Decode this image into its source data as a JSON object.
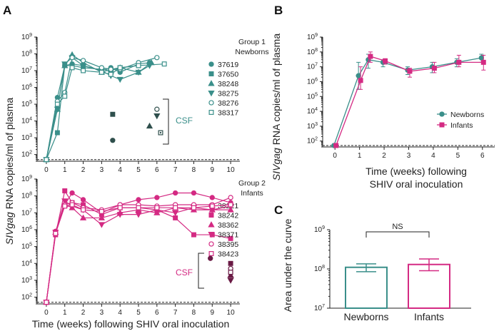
{
  "colors": {
    "newborns": "#3a8f8a",
    "infants": "#d42a83",
    "axis": "#222222"
  },
  "panels": {
    "a": {
      "label": "A",
      "ylabel_gene": "SIVgag",
      "ylabel_rest": " RNA copies/ml of plasma",
      "xlabel": "Time (weeks) following SHIV oral inoculation",
      "csf_label": "CSF",
      "csf_label_2": "CSF"
    },
    "b": {
      "label": "B",
      "ylabel_gene": "SIVgag",
      "ylabel_rest": " RNA copies/ml of plasma",
      "xlabel_line1": "Time (weeks) following",
      "xlabel_line2": "SHIV oral inoculation"
    },
    "c": {
      "label": "C",
      "ylabel": "Area under the curve",
      "ns": "NS"
    }
  },
  "chart_data": [
    {
      "id": "A-top",
      "type": "line",
      "legend_title_1": "Group 1",
      "legend_title_2": "Newborns",
      "xticks": [
        "0",
        "1",
        "2",
        "3",
        "4",
        "5",
        "6",
        "7",
        "8",
        "9",
        "10"
      ],
      "ylog": true,
      "ylim": [
        40,
        1000000000
      ],
      "ytick_exps": [
        2,
        3,
        4,
        5,
        6,
        7,
        8,
        9
      ],
      "detection_limit": 50,
      "series": [
        {
          "name": "37619",
          "marker": "circle",
          "fill": true,
          "x": [
            0,
            0.6,
            1,
            1.4,
            2,
            3,
            3.5,
            4,
            5,
            5.6
          ],
          "y": [
            50,
            250000,
            20000000,
            25000000,
            20000000,
            10000000,
            15000000,
            8000000,
            25000000,
            30000000
          ]
        },
        {
          "name": "37650",
          "marker": "square",
          "fill": true,
          "x": [
            0,
            0.6,
            1,
            1.4,
            2,
            3,
            3.5,
            4,
            5
          ],
          "y": [
            50,
            2000,
            20000000,
            20000000,
            15000000,
            12000000,
            10000000,
            15000000,
            20000000
          ]
        },
        {
          "name": "38248",
          "marker": "triangle",
          "fill": true,
          "x": [
            0,
            0.6,
            1,
            1.4,
            2,
            3,
            3.5,
            4,
            5,
            5.7
          ],
          "y": [
            50,
            50000,
            20000000,
            90000000,
            30000000,
            8000000,
            12000000,
            15000000,
            8000000,
            30000000
          ]
        },
        {
          "name": "38275",
          "marker": "tri-down",
          "fill": true,
          "x": [
            0,
            0.6,
            1,
            1.4,
            2,
            3,
            3.5,
            4,
            5,
            5.6
          ],
          "y": [
            50,
            50000,
            25000000,
            60000000,
            20000000,
            10000000,
            5000000,
            3000000,
            8000000,
            20000000
          ]
        },
        {
          "name": "38276",
          "marker": "circle",
          "fill": false,
          "x": [
            0,
            0.6,
            1,
            1.4,
            2,
            3,
            3.5,
            4,
            5,
            6
          ],
          "y": [
            50,
            150000,
            500000,
            60000000,
            40000000,
            15000000,
            12000000,
            12000000,
            30000000,
            60000000
          ]
        },
        {
          "name": "38317",
          "marker": "square",
          "fill": false,
          "x": [
            0,
            0.6,
            1,
            1.4,
            2,
            3,
            3.5,
            4,
            5,
            6.4
          ],
          "y": [
            50,
            100000,
            300000,
            15000000,
            10000000,
            8000000,
            6000000,
            15000000,
            20000000,
            25000000
          ]
        }
      ],
      "csf": [
        {
          "series": "37619",
          "marker": "circle",
          "fill": true,
          "x": 3.6,
          "y": 700
        },
        {
          "series": "37650",
          "marker": "square",
          "fill": true,
          "x": 3.6,
          "y": 25000
        },
        {
          "series": "38248",
          "marker": "triangle",
          "fill": true,
          "x": 5.6,
          "y": 5000
        },
        {
          "series": "38275",
          "marker": "tri-down",
          "fill": true,
          "x": 6,
          "y": 20000
        },
        {
          "series": "38276",
          "marker": "circle",
          "fill": false,
          "x": 6,
          "y": 50000
        },
        {
          "series": "38317",
          "marker": "square-dot",
          "fill": false,
          "x": 6.2,
          "y": 2000
        }
      ]
    },
    {
      "id": "A-bottom",
      "type": "line",
      "legend_title_1": "Group 2",
      "legend_title_2": "Infants",
      "xticks": [
        "0",
        "1",
        "2",
        "3",
        "4",
        "5",
        "6",
        "7",
        "8",
        "9",
        "10"
      ],
      "ylog": true,
      "ylim": [
        40,
        1000000000
      ],
      "ytick_exps": [
        2,
        3,
        4,
        5,
        6,
        7,
        8,
        9
      ],
      "detection_limit": 50,
      "series": [
        {
          "name": "38221",
          "marker": "circle",
          "fill": true,
          "x": [
            0,
            0.5,
            1,
            1.4,
            2,
            3,
            4,
            5,
            6,
            7,
            8,
            9,
            10
          ],
          "y": [
            50,
            800000,
            30000000,
            150000000,
            60000000,
            10000000,
            30000000,
            60000000,
            80000000,
            150000000,
            150000000,
            80000000,
            40000000
          ]
        },
        {
          "name": "38242",
          "marker": "square",
          "fill": true,
          "x": [
            0,
            0.5,
            1,
            1.4,
            2,
            3,
            4,
            5,
            6,
            7,
            8,
            9,
            10
          ],
          "y": [
            50,
            500000,
            200000000,
            40000000,
            30000000,
            8000000,
            20000000,
            20000000,
            15000000,
            5000000,
            500000,
            500000,
            300000
          ]
        },
        {
          "name": "38362",
          "marker": "triangle",
          "fill": true,
          "x": [
            0,
            0.5,
            1,
            1.4,
            2,
            3,
            4,
            5,
            6,
            7,
            8,
            9,
            10
          ],
          "y": [
            50,
            700000,
            30000000,
            20000000,
            5000000,
            5000000,
            10000000,
            15000000,
            10000000,
            20000000,
            15000000,
            15000000,
            15000000
          ]
        },
        {
          "name": "38371",
          "marker": "tri-down",
          "fill": true,
          "x": [
            0,
            0.5,
            1,
            1.4,
            2,
            3,
            4,
            5,
            6,
            7,
            8,
            9,
            10
          ],
          "y": [
            50,
            700000,
            50000000,
            25000000,
            15000000,
            2000000,
            8000000,
            8000000,
            15000000,
            10000000,
            20000000,
            15000000,
            25000000
          ]
        },
        {
          "name": "38395",
          "marker": "circle",
          "fill": false,
          "x": [
            0,
            0.5,
            1,
            1.4,
            2,
            3,
            4,
            5,
            6,
            7,
            8,
            9,
            10
          ],
          "y": [
            50,
            600000,
            30000000,
            40000000,
            20000000,
            15000000,
            30000000,
            30000000,
            25000000,
            30000000,
            30000000,
            30000000,
            80000000
          ]
        },
        {
          "name": "38423",
          "marker": "square",
          "fill": false,
          "x": [
            0,
            0.5,
            1,
            1.4,
            2,
            3,
            4,
            5,
            6,
            7,
            8,
            9,
            10
          ],
          "y": [
            50,
            600000,
            25000000,
            30000000,
            15000000,
            12000000,
            20000000,
            20000000,
            20000000,
            20000000,
            20000000,
            25000000,
            30000000
          ]
        }
      ],
      "csf": [
        {
          "series": "38221",
          "marker": "circle",
          "fill": true,
          "x": 8.9,
          "y": 20000
        },
        {
          "series": "38242",
          "marker": "square",
          "fill": true,
          "x": 10,
          "y": 10000
        },
        {
          "series": "38362",
          "marker": "triangle",
          "fill": true,
          "x": 10,
          "y": 2000
        },
        {
          "series": "38371",
          "marker": "tri-down",
          "fill": true,
          "x": 10,
          "y": 1000
        },
        {
          "series": "38395",
          "marker": "circle",
          "fill": false,
          "x": 10,
          "y": 5000
        },
        {
          "series": "38423",
          "marker": "square",
          "fill": false,
          "x": 10,
          "y": 3000
        }
      ]
    },
    {
      "id": "B",
      "type": "line",
      "xticks": [
        "0",
        "1",
        "2",
        "3",
        "4",
        "5",
        "6"
      ],
      "ylog": true,
      "ylim": [
        40,
        1000000000
      ],
      "ytick_exps": [
        2,
        3,
        4,
        5,
        6,
        7,
        8,
        9
      ],
      "detection_limit": 50,
      "legend": [
        "Newborns",
        "Infants"
      ],
      "series": [
        {
          "name": "Newborns",
          "marker": "circle",
          "x": [
            0,
            1,
            1.4,
            2,
            3,
            4,
            5,
            6
          ],
          "y": [
            50,
            2500000,
            30000000,
            20000000,
            6000000,
            10000000,
            20000000,
            40000000
          ],
          "err_lo": [
            50,
            300000,
            8000000,
            10000000,
            3000000,
            4000000,
            10000000,
            20000000
          ],
          "err_hi": [
            50,
            20000000,
            70000000,
            30000000,
            10000000,
            20000000,
            35000000,
            70000000
          ]
        },
        {
          "name": "Infants",
          "marker": "square",
          "x": [
            0,
            1,
            1.4,
            2,
            3,
            4,
            5,
            6
          ],
          "y": [
            50,
            1200000,
            50000000,
            25000000,
            5000000,
            8000000,
            20000000,
            20000000
          ],
          "err_lo": [
            50,
            300000,
            20000000,
            15000000,
            2000000,
            4000000,
            10000000,
            6000000
          ],
          "err_hi": [
            50,
            10000000,
            100000000,
            35000000,
            8000000,
            20000000,
            60000000,
            60000000
          ]
        }
      ]
    },
    {
      "id": "C",
      "type": "bar",
      "categories": [
        "Newborns",
        "Infants"
      ],
      "values": [
        110000000,
        130000000
      ],
      "err_lo": [
        85000000,
        90000000
      ],
      "err_hi": [
        135000000,
        180000000
      ],
      "ylog": true,
      "ylim": [
        10000000,
        1000000000
      ],
      "ytick_exps": [
        7,
        8,
        9
      ]
    }
  ]
}
